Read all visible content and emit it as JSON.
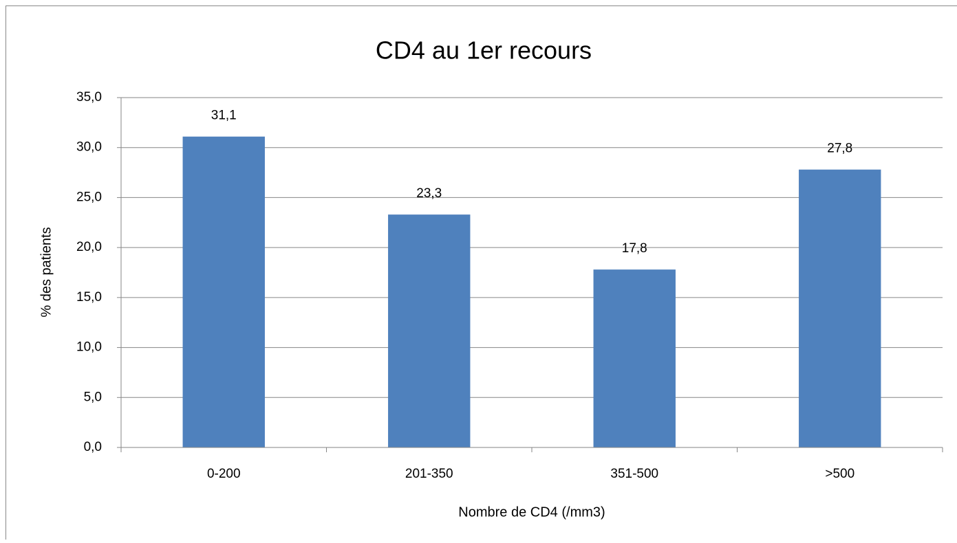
{
  "chart_data": {
    "type": "bar",
    "title": "CD4 au 1er recours",
    "x_label": "Nombre de CD4 (/mm3)",
    "y_label": "% des patients",
    "categories": [
      "0-200",
      "201-350",
      "351-500",
      ">500"
    ],
    "values": [
      31.1,
      23.3,
      17.8,
      27.8
    ],
    "value_labels": [
      "31,1",
      "23,3",
      "17,8",
      "27,8"
    ],
    "color": "#4f81bd",
    "ylim": [
      0,
      35
    ],
    "yticks": [
      {
        "value": 0,
        "label": "0,0"
      },
      {
        "value": 5,
        "label": "5,0"
      },
      {
        "value": 10,
        "label": "10,0"
      },
      {
        "value": 15,
        "label": "15,0"
      },
      {
        "value": 20,
        "label": "20,0"
      },
      {
        "value": 25,
        "label": "25,0"
      },
      {
        "value": 30,
        "label": "30,0"
      },
      {
        "value": 35,
        "label": "35,0"
      }
    ],
    "grid": true
  }
}
